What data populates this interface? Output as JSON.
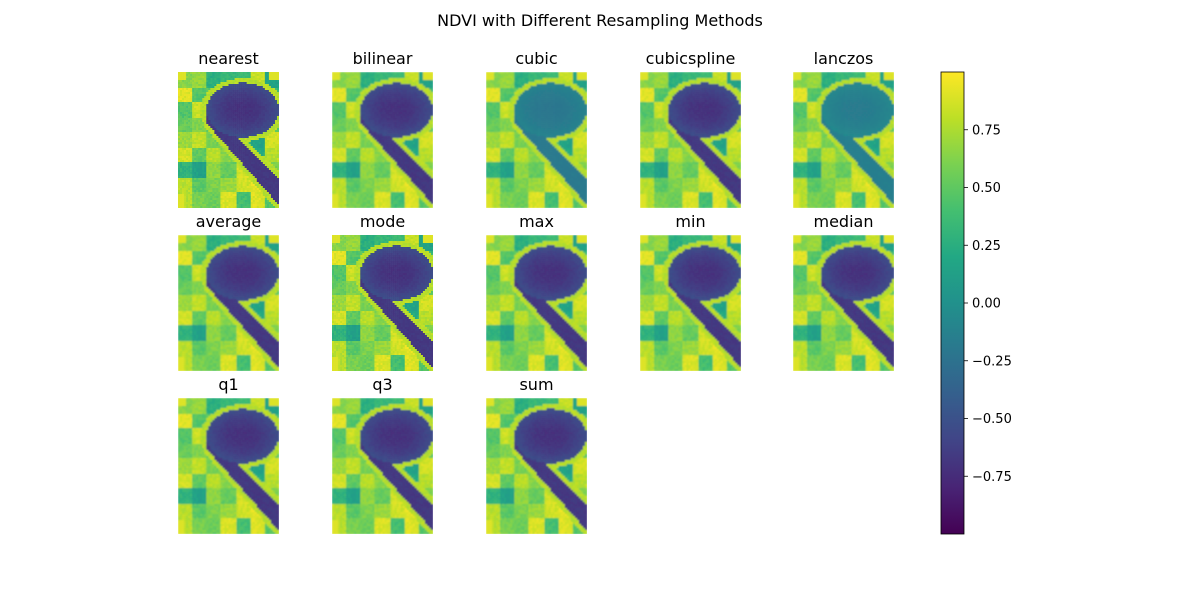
{
  "chart_data": {
    "type": "heatmap",
    "title": "NDVI with Different Resampling Methods",
    "panels": [
      {
        "name": "nearest",
        "smoothing": 0
      },
      {
        "name": "bilinear",
        "smoothing": 1
      },
      {
        "name": "cubic",
        "smoothing": 1,
        "brightness": 0.18
      },
      {
        "name": "cubicspline",
        "smoothing": 1
      },
      {
        "name": "lanczos",
        "smoothing": 1,
        "brightness": 0.22
      },
      {
        "name": "average",
        "smoothing": 1
      },
      {
        "name": "mode",
        "smoothing": 0
      },
      {
        "name": "max",
        "smoothing": 1
      },
      {
        "name": "min",
        "smoothing": 1
      },
      {
        "name": "median",
        "smoothing": 1
      },
      {
        "name": "q1",
        "smoothing": 1
      },
      {
        "name": "q3",
        "smoothing": 1
      },
      {
        "name": "sum",
        "smoothing": 1
      }
    ],
    "colorbar": {
      "colormap": "viridis",
      "range": [
        -1.0,
        1.0
      ],
      "ticks": [
        0.75,
        0.5,
        0.25,
        0.0,
        -0.25,
        -0.5,
        -0.75
      ],
      "tick_labels": [
        "0.75",
        "0.50",
        "0.25",
        "0.00",
        "−0.25",
        "−0.50",
        "−0.75"
      ]
    }
  }
}
